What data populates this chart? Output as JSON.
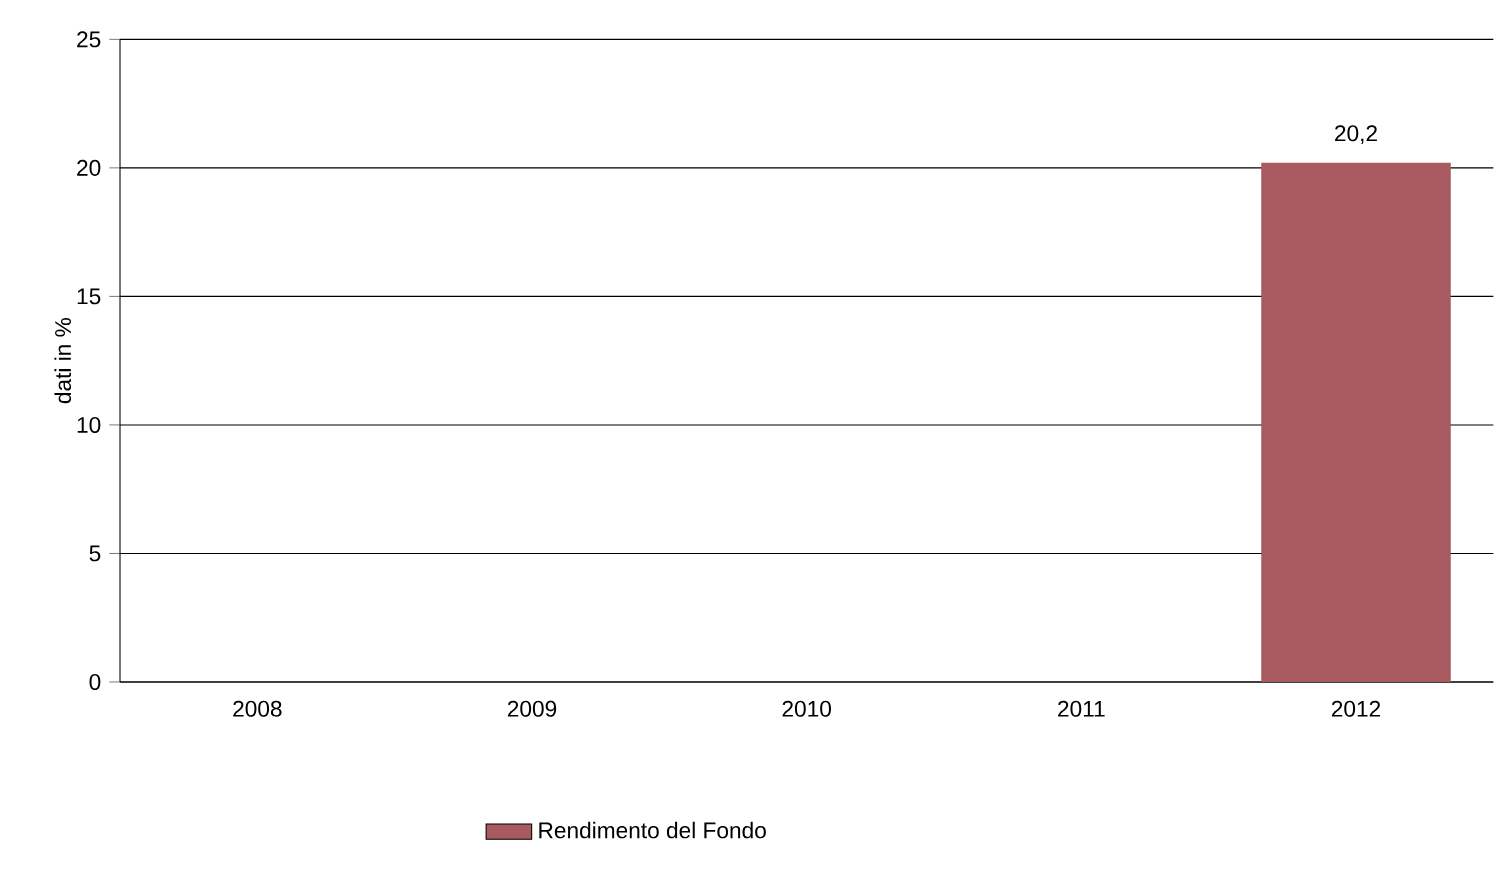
{
  "chart_data": {
    "type": "bar",
    "ylabel": "dati in %",
    "categories": [
      "2008",
      "2009",
      "2010",
      "2011",
      "2012"
    ],
    "series": [
      {
        "name": "Rendimento del Fondo",
        "color": "#a85a60",
        "values": [
          null,
          null,
          null,
          null,
          20.2
        ],
        "value_labels": [
          null,
          null,
          null,
          null,
          "20,2"
        ]
      }
    ],
    "ylim": [
      0,
      25
    ],
    "yticks": [
      0,
      5,
      10,
      15,
      20,
      25
    ],
    "grid": "y",
    "legend": "bottom"
  }
}
